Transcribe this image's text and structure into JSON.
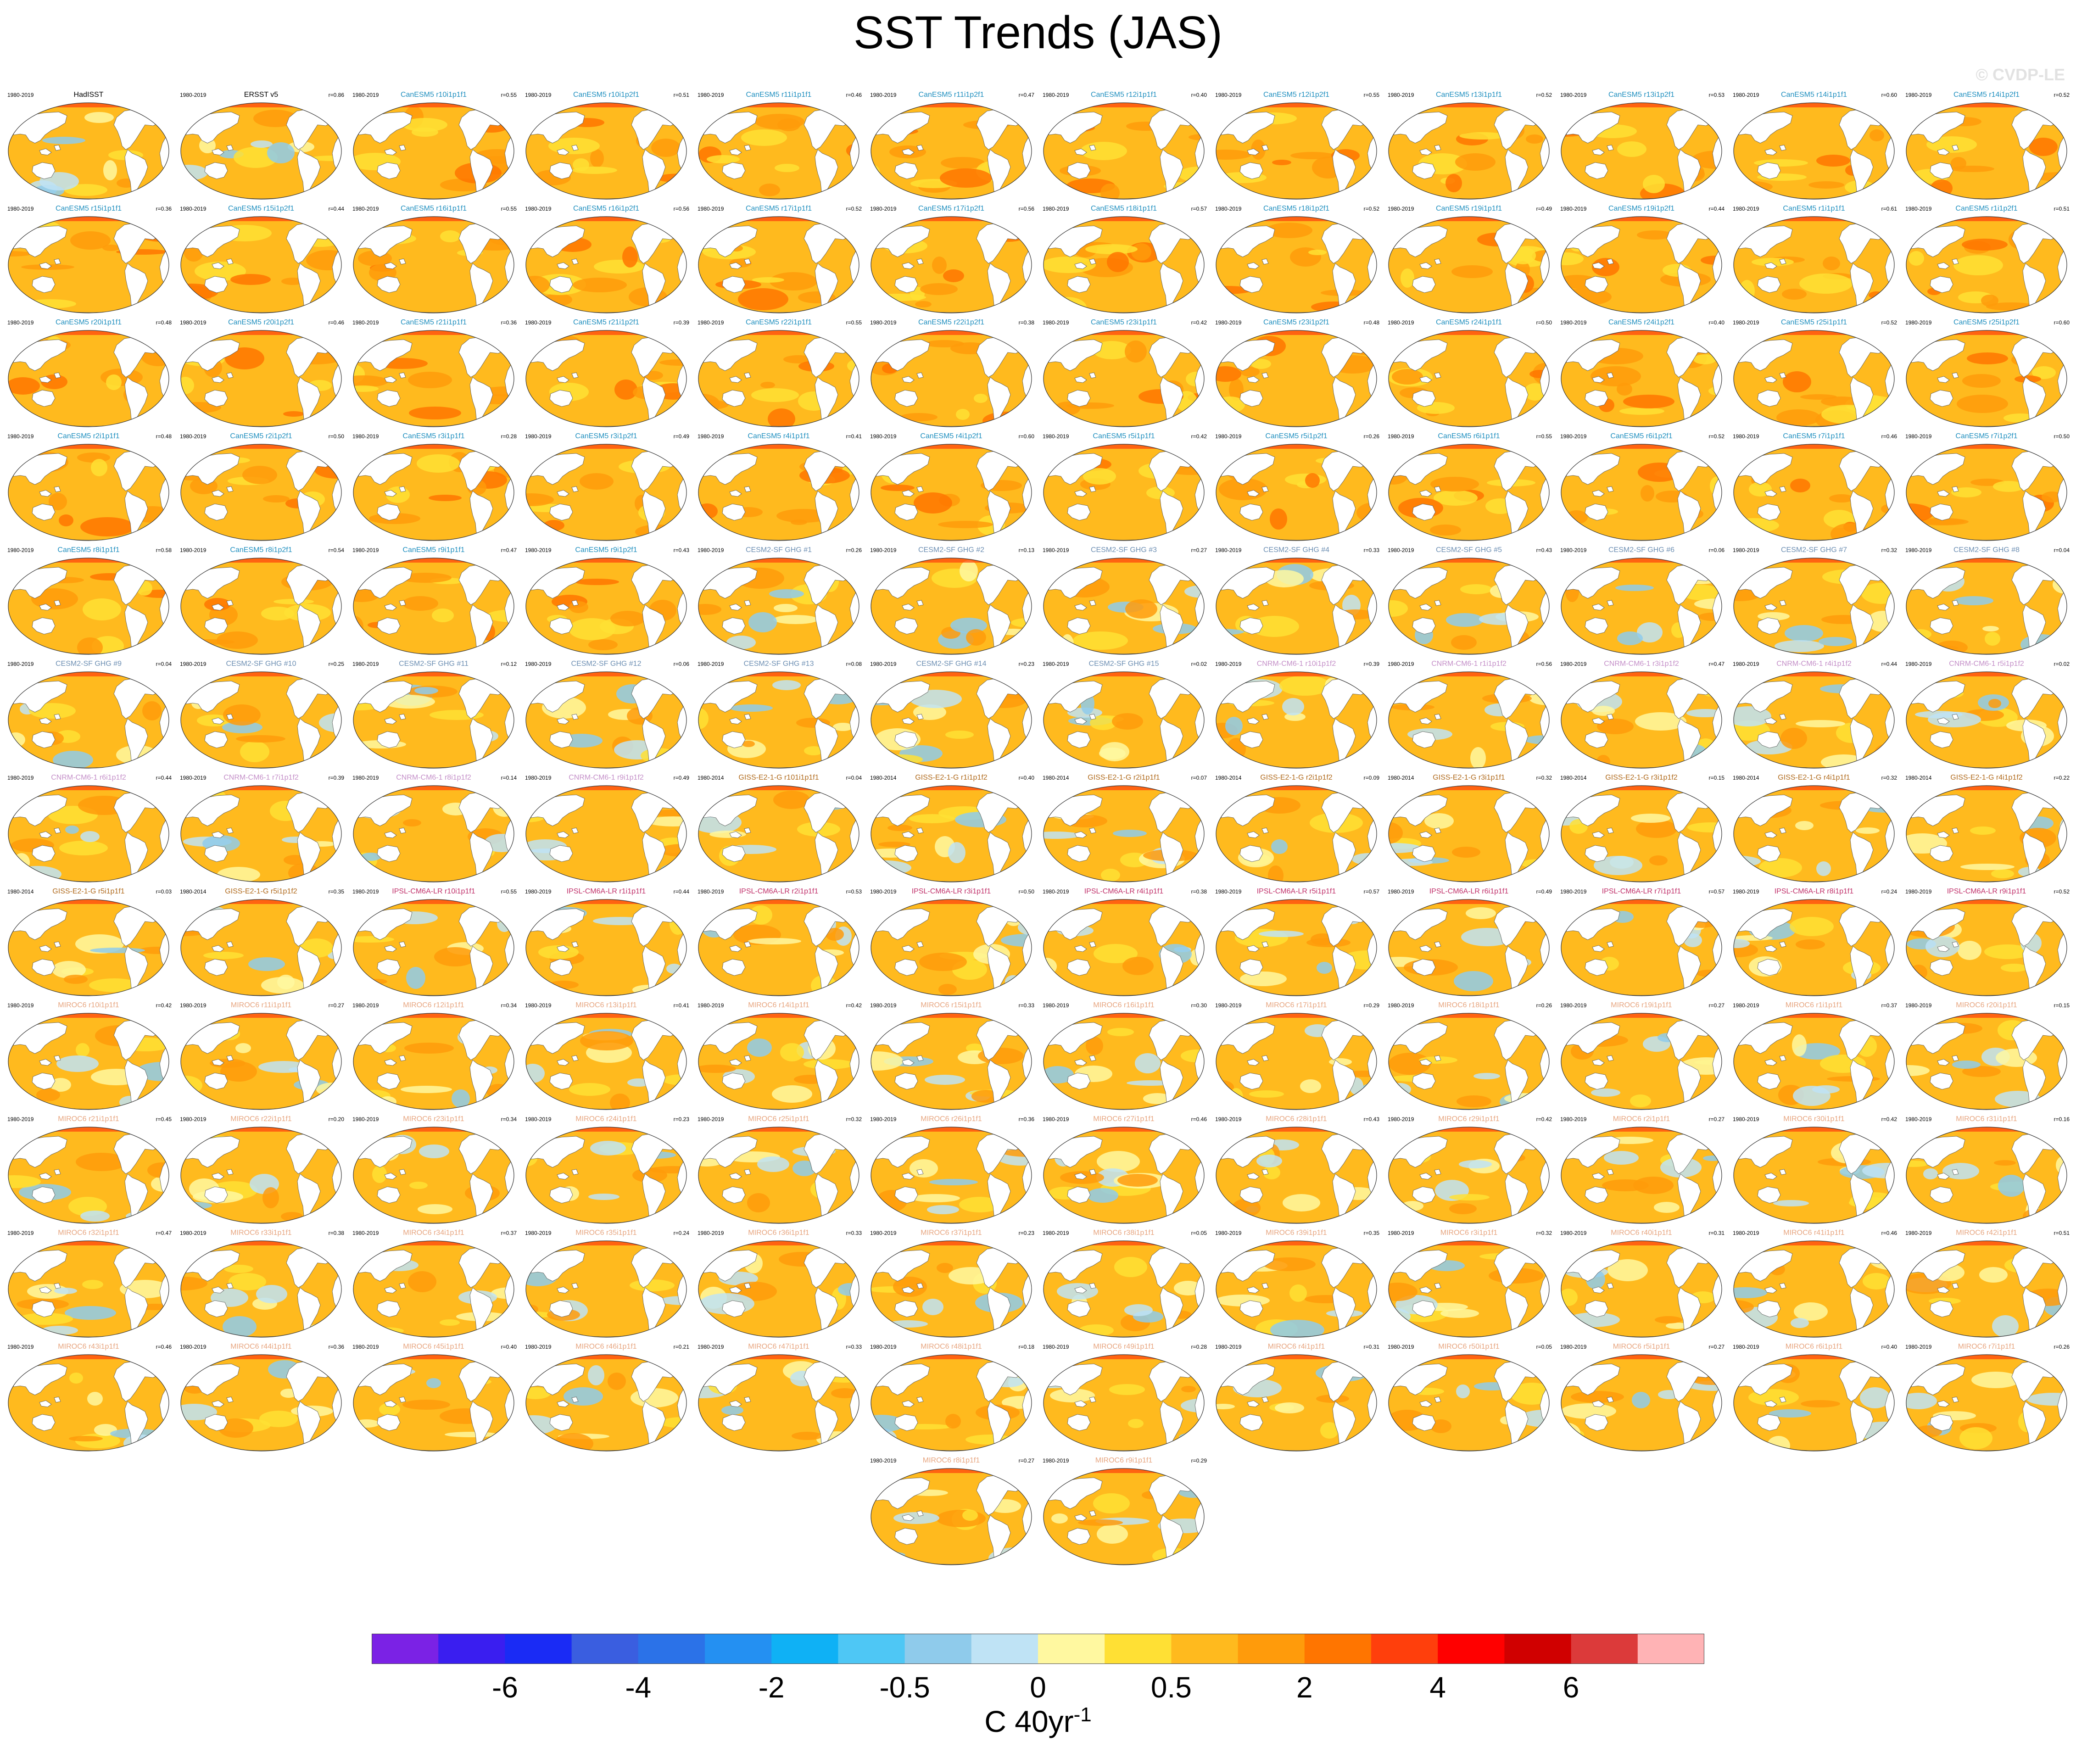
{
  "title": "SST Trends (JAS)",
  "watermark": "© CVDP-LE",
  "panels": [
    {
      "label": "HadISST",
      "period": "1980-2019",
      "r": "",
      "group": "obs"
    },
    {
      "label": "ERSST v5",
      "period": "1980-2019",
      "r": "r=0.86",
      "group": "obs"
    },
    {
      "label": "CanESM5 r10i1p1f1",
      "period": "1980-2019",
      "r": "r=0.55",
      "group": "canesm"
    },
    {
      "label": "CanESM5 r10i1p2f1",
      "period": "1980-2019",
      "r": "r=0.51",
      "group": "canesm"
    },
    {
      "label": "CanESM5 r11i1p1f1",
      "period": "1980-2019",
      "r": "r=0.46",
      "group": "canesm"
    },
    {
      "label": "CanESM5 r11i1p2f1",
      "period": "1980-2019",
      "r": "r=0.47",
      "group": "canesm"
    },
    {
      "label": "CanESM5 r12i1p1f1",
      "period": "1980-2019",
      "r": "r=0.40",
      "group": "canesm"
    },
    {
      "label": "CanESM5 r12i1p2f1",
      "period": "1980-2019",
      "r": "r=0.55",
      "group": "canesm"
    },
    {
      "label": "CanESM5 r13i1p1f1",
      "period": "1980-2019",
      "r": "r=0.52",
      "group": "canesm"
    },
    {
      "label": "CanESM5 r13i1p2f1",
      "period": "1980-2019",
      "r": "r=0.53",
      "group": "canesm"
    },
    {
      "label": "CanESM5 r14i1p1f1",
      "period": "1980-2019",
      "r": "r=0.60",
      "group": "canesm"
    },
    {
      "label": "CanESM5 r14i1p2f1",
      "period": "1980-2019",
      "r": "r=0.52",
      "group": "canesm"
    },
    {
      "label": "CanESM5 r15i1p1f1",
      "period": "1980-2019",
      "r": "r=0.36",
      "group": "canesm"
    },
    {
      "label": "CanESM5 r15i1p2f1",
      "period": "1980-2019",
      "r": "r=0.44",
      "group": "canesm"
    },
    {
      "label": "CanESM5 r16i1p1f1",
      "period": "1980-2019",
      "r": "r=0.55",
      "group": "canesm"
    },
    {
      "label": "CanESM5 r16i1p2f1",
      "period": "1980-2019",
      "r": "r=0.56",
      "group": "canesm"
    },
    {
      "label": "CanESM5 r17i1p1f1",
      "period": "1980-2019",
      "r": "r=0.52",
      "group": "canesm"
    },
    {
      "label": "CanESM5 r17i1p2f1",
      "period": "1980-2019",
      "r": "r=0.56",
      "group": "canesm"
    },
    {
      "label": "CanESM5 r18i1p1f1",
      "period": "1980-2019",
      "r": "r=0.57",
      "group": "canesm"
    },
    {
      "label": "CanESM5 r18i1p2f1",
      "period": "1980-2019",
      "r": "r=0.52",
      "group": "canesm"
    },
    {
      "label": "CanESM5 r19i1p1f1",
      "period": "1980-2019",
      "r": "r=0.49",
      "group": "canesm"
    },
    {
      "label": "CanESM5 r19i1p2f1",
      "period": "1980-2019",
      "r": "r=0.44",
      "group": "canesm"
    },
    {
      "label": "CanESM5 r1i1p1f1",
      "period": "1980-2019",
      "r": "r=0.61",
      "group": "canesm"
    },
    {
      "label": "CanESM5 r1i1p2f1",
      "period": "1980-2019",
      "r": "r=0.51",
      "group": "canesm"
    },
    {
      "label": "CanESM5 r20i1p1f1",
      "period": "1980-2019",
      "r": "r=0.48",
      "group": "canesm"
    },
    {
      "label": "CanESM5 r20i1p2f1",
      "period": "1980-2019",
      "r": "r=0.46",
      "group": "canesm"
    },
    {
      "label": "CanESM5 r21i1p1f1",
      "period": "1980-2019",
      "r": "r=0.36",
      "group": "canesm"
    },
    {
      "label": "CanESM5 r21i1p2f1",
      "period": "1980-2019",
      "r": "r=0.39",
      "group": "canesm"
    },
    {
      "label": "CanESM5 r22i1p1f1",
      "period": "1980-2019",
      "r": "r=0.55",
      "group": "canesm"
    },
    {
      "label": "CanESM5 r22i1p2f1",
      "period": "1980-2019",
      "r": "r=0.38",
      "group": "canesm"
    },
    {
      "label": "CanESM5 r23i1p1f1",
      "period": "1980-2019",
      "r": "r=0.42",
      "group": "canesm"
    },
    {
      "label": "CanESM5 r23i1p2f1",
      "period": "1980-2019",
      "r": "r=0.48",
      "group": "canesm"
    },
    {
      "label": "CanESM5 r24i1p1f1",
      "period": "1980-2019",
      "r": "r=0.50",
      "group": "canesm"
    },
    {
      "label": "CanESM5 r24i1p2f1",
      "period": "1980-2019",
      "r": "r=0.40",
      "group": "canesm"
    },
    {
      "label": "CanESM5 r25i1p1f1",
      "period": "1980-2019",
      "r": "r=0.52",
      "group": "canesm"
    },
    {
      "label": "CanESM5 r25i1p2f1",
      "period": "1980-2019",
      "r": "r=0.60",
      "group": "canesm"
    },
    {
      "label": "CanESM5 r2i1p1f1",
      "period": "1980-2019",
      "r": "r=0.48",
      "group": "canesm"
    },
    {
      "label": "CanESM5 r2i1p2f1",
      "period": "1980-2019",
      "r": "r=0.50",
      "group": "canesm"
    },
    {
      "label": "CanESM5 r3i1p1f1",
      "period": "1980-2019",
      "r": "r=0.28",
      "group": "canesm"
    },
    {
      "label": "CanESM5 r3i1p2f1",
      "period": "1980-2019",
      "r": "r=0.49",
      "group": "canesm"
    },
    {
      "label": "CanESM5 r4i1p1f1",
      "period": "1980-2019",
      "r": "r=0.41",
      "group": "canesm"
    },
    {
      "label": "CanESM5 r4i1p2f1",
      "period": "1980-2019",
      "r": "r=0.60",
      "group": "canesm"
    },
    {
      "label": "CanESM5 r5i1p1f1",
      "period": "1980-2019",
      "r": "r=0.42",
      "group": "canesm"
    },
    {
      "label": "CanESM5 r5i1p2f1",
      "period": "1980-2019",
      "r": "r=0.26",
      "group": "canesm"
    },
    {
      "label": "CanESM5 r6i1p1f1",
      "period": "1980-2019",
      "r": "r=0.55",
      "group": "canesm"
    },
    {
      "label": "CanESM5 r6i1p2f1",
      "period": "1980-2019",
      "r": "r=0.52",
      "group": "canesm"
    },
    {
      "label": "CanESM5 r7i1p1f1",
      "period": "1980-2019",
      "r": "r=0.46",
      "group": "canesm"
    },
    {
      "label": "CanESM5 r7i1p2f1",
      "period": "1980-2019",
      "r": "r=0.50",
      "group": "canesm"
    },
    {
      "label": "CanESM5 r8i1p1f1",
      "period": "1980-2019",
      "r": "r=0.58",
      "group": "canesm"
    },
    {
      "label": "CanESM5 r8i1p2f1",
      "period": "1980-2019",
      "r": "r=0.54",
      "group": "canesm"
    },
    {
      "label": "CanESM5 r9i1p1f1",
      "period": "1980-2019",
      "r": "r=0.47",
      "group": "canesm"
    },
    {
      "label": "CanESM5 r9i1p2f1",
      "period": "1980-2019",
      "r": "r=0.43",
      "group": "canesm"
    },
    {
      "label": "CESM2-SF GHG #1",
      "period": "1980-2019",
      "r": "r=0.26",
      "group": "cesm"
    },
    {
      "label": "CESM2-SF GHG #2",
      "period": "1980-2019",
      "r": "r=0.13",
      "group": "cesm"
    },
    {
      "label": "CESM2-SF GHG #3",
      "period": "1980-2019",
      "r": "r=0.27",
      "group": "cesm"
    },
    {
      "label": "CESM2-SF GHG #4",
      "period": "1980-2019",
      "r": "r=0.33",
      "group": "cesm"
    },
    {
      "label": "CESM2-SF GHG #5",
      "period": "1980-2019",
      "r": "r=0.43",
      "group": "cesm"
    },
    {
      "label": "CESM2-SF GHG #6",
      "period": "1980-2019",
      "r": "r=0.06",
      "group": "cesm"
    },
    {
      "label": "CESM2-SF GHG #7",
      "period": "1980-2019",
      "r": "r=0.32",
      "group": "cesm"
    },
    {
      "label": "CESM2-SF GHG #8",
      "period": "1980-2019",
      "r": "r=0.04",
      "group": "cesm"
    },
    {
      "label": "CESM2-SF GHG #9",
      "period": "1980-2019",
      "r": "r=0.04",
      "group": "cesm"
    },
    {
      "label": "CESM2-SF GHG #10",
      "period": "1980-2019",
      "r": "r=0.25",
      "group": "cesm"
    },
    {
      "label": "CESM2-SF GHG #11",
      "period": "1980-2019",
      "r": "r=0.12",
      "group": "cesm"
    },
    {
      "label": "CESM2-SF GHG #12",
      "period": "1980-2019",
      "r": "r=0.06",
      "group": "cesm"
    },
    {
      "label": "CESM2-SF GHG #13",
      "period": "1980-2019",
      "r": "r=0.08",
      "group": "cesm"
    },
    {
      "label": "CESM2-SF GHG #14",
      "period": "1980-2019",
      "r": "r=0.23",
      "group": "cesm"
    },
    {
      "label": "CESM2-SF GHG #15",
      "period": "1980-2019",
      "r": "r=0.02",
      "group": "cesm"
    },
    {
      "label": "CNRM-CM6-1 r10i1p1f2",
      "period": "1980-2019",
      "r": "r=0.39",
      "group": "cnrm"
    },
    {
      "label": "CNRM-CM6-1 r1i1p1f2",
      "period": "1980-2019",
      "r": "r=0.56",
      "group": "cnrm"
    },
    {
      "label": "CNRM-CM6-1 r3i1p1f2",
      "period": "1980-2019",
      "r": "r=0.47",
      "group": "cnrm"
    },
    {
      "label": "CNRM-CM6-1 r4i1p1f2",
      "period": "1980-2019",
      "r": "r=0.44",
      "group": "cnrm"
    },
    {
      "label": "CNRM-CM6-1 r5i1p1f2",
      "period": "1980-2019",
      "r": "r=0.02",
      "group": "cnrm"
    },
    {
      "label": "CNRM-CM6-1 r6i1p1f2",
      "period": "1980-2019",
      "r": "r=0.44",
      "group": "cnrm"
    },
    {
      "label": "CNRM-CM6-1 r7i1p1f2",
      "period": "1980-2019",
      "r": "r=0.39",
      "group": "cnrm"
    },
    {
      "label": "CNRM-CM6-1 r8i1p1f2",
      "period": "1980-2019",
      "r": "r=0.14",
      "group": "cnrm"
    },
    {
      "label": "CNRM-CM6-1 r9i1p1f2",
      "period": "1980-2019",
      "r": "r=0.49",
      "group": "cnrm"
    },
    {
      "label": "GISS-E2-1-G r101i1p1f1",
      "period": "1980-2014",
      "r": "r=0.04",
      "group": "giss"
    },
    {
      "label": "GISS-E2-1-G r1i1p1f2",
      "period": "1980-2014",
      "r": "r=0.40",
      "group": "giss"
    },
    {
      "label": "GISS-E2-1-G r2i1p1f1",
      "period": "1980-2014",
      "r": "r=0.07",
      "group": "giss"
    },
    {
      "label": "GISS-E2-1-G r2i1p1f2",
      "period": "1980-2014",
      "r": "r=0.09",
      "group": "giss"
    },
    {
      "label": "GISS-E2-1-G r3i1p1f1",
      "period": "1980-2014",
      "r": "r=0.32",
      "group": "giss"
    },
    {
      "label": "GISS-E2-1-G r3i1p1f2",
      "period": "1980-2014",
      "r": "r=0.15",
      "group": "giss"
    },
    {
      "label": "GISS-E2-1-G r4i1p1f1",
      "period": "1980-2014",
      "r": "r=0.32",
      "group": "giss"
    },
    {
      "label": "GISS-E2-1-G r4i1p1f2",
      "period": "1980-2014",
      "r": "r=0.22",
      "group": "giss"
    },
    {
      "label": "GISS-E2-1-G r5i1p1f1",
      "period": "1980-2014",
      "r": "r=0.03",
      "group": "giss"
    },
    {
      "label": "GISS-E2-1-G r5i1p1f2",
      "period": "1980-2014",
      "r": "r=0.35",
      "group": "giss"
    },
    {
      "label": "IPSL-CM6A-LR r10i1p1f1",
      "period": "1980-2019",
      "r": "r=0.55",
      "group": "ipsl"
    },
    {
      "label": "IPSL-CM6A-LR r1i1p1f1",
      "period": "1980-2019",
      "r": "r=0.44",
      "group": "ipsl"
    },
    {
      "label": "IPSL-CM6A-LR r2i1p1f1",
      "period": "1980-2019",
      "r": "r=0.53",
      "group": "ipsl"
    },
    {
      "label": "IPSL-CM6A-LR r3i1p1f1",
      "period": "1980-2019",
      "r": "r=0.50",
      "group": "ipsl"
    },
    {
      "label": "IPSL-CM6A-LR r4i1p1f1",
      "period": "1980-2019",
      "r": "r=0.38",
      "group": "ipsl"
    },
    {
      "label": "IPSL-CM6A-LR r5i1p1f1",
      "period": "1980-2019",
      "r": "r=0.57",
      "group": "ipsl"
    },
    {
      "label": "IPSL-CM6A-LR r6i1p1f1",
      "period": "1980-2019",
      "r": "r=0.49",
      "group": "ipsl"
    },
    {
      "label": "IPSL-CM6A-LR r7i1p1f1",
      "period": "1980-2019",
      "r": "r=0.57",
      "group": "ipsl"
    },
    {
      "label": "IPSL-CM6A-LR r8i1p1f1",
      "period": "1980-2019",
      "r": "r=0.24",
      "group": "ipsl"
    },
    {
      "label": "IPSL-CM6A-LR r9i1p1f1",
      "period": "1980-2019",
      "r": "r=0.52",
      "group": "ipsl"
    },
    {
      "label": "MIROC6 r10i1p1f1",
      "period": "1980-2019",
      "r": "r=0.42",
      "group": "miroc"
    },
    {
      "label": "MIROC6 r11i1p1f1",
      "period": "1980-2019",
      "r": "r=0.27",
      "group": "miroc"
    },
    {
      "label": "MIROC6 r12i1p1f1",
      "period": "1980-2019",
      "r": "r=0.34",
      "group": "miroc"
    },
    {
      "label": "MIROC6 r13i1p1f1",
      "period": "1980-2019",
      "r": "r=0.41",
      "group": "miroc"
    },
    {
      "label": "MIROC6 r14i1p1f1",
      "period": "1980-2019",
      "r": "r=0.42",
      "group": "miroc"
    },
    {
      "label": "MIROC6 r15i1p1f1",
      "period": "1980-2019",
      "r": "r=0.33",
      "group": "miroc"
    },
    {
      "label": "MIROC6 r16i1p1f1",
      "period": "1980-2019",
      "r": "r=0.30",
      "group": "miroc"
    },
    {
      "label": "MIROC6 r17i1p1f1",
      "period": "1980-2019",
      "r": "r=0.29",
      "group": "miroc"
    },
    {
      "label": "MIROC6 r18i1p1f1",
      "period": "1980-2019",
      "r": "r=0.26",
      "group": "miroc"
    },
    {
      "label": "MIROC6 r19i1p1f1",
      "period": "1980-2019",
      "r": "r=0.27",
      "group": "miroc"
    },
    {
      "label": "MIROC6 r1i1p1f1",
      "period": "1980-2019",
      "r": "r=0.37",
      "group": "miroc"
    },
    {
      "label": "MIROC6 r20i1p1f1",
      "period": "1980-2019",
      "r": "r=0.15",
      "group": "miroc"
    },
    {
      "label": "MIROC6 r21i1p1f1",
      "period": "1980-2019",
      "r": "r=0.45",
      "group": "miroc"
    },
    {
      "label": "MIROC6 r22i1p1f1",
      "period": "1980-2019",
      "r": "r=0.20",
      "group": "miroc"
    },
    {
      "label": "MIROC6 r23i1p1f1",
      "period": "1980-2019",
      "r": "r=0.34",
      "group": "miroc"
    },
    {
      "label": "MIROC6 r24i1p1f1",
      "period": "1980-2019",
      "r": "r=0.23",
      "group": "miroc"
    },
    {
      "label": "MIROC6 r25i1p1f1",
      "period": "1980-2019",
      "r": "r=0.32",
      "group": "miroc"
    },
    {
      "label": "MIROC6 r26i1p1f1",
      "period": "1980-2019",
      "r": "r=0.36",
      "group": "miroc"
    },
    {
      "label": "MIROC6 r27i1p1f1",
      "period": "1980-2019",
      "r": "r=0.46",
      "group": "miroc"
    },
    {
      "label": "MIROC6 r28i1p1f1",
      "period": "1980-2019",
      "r": "r=0.43",
      "group": "miroc"
    },
    {
      "label": "MIROC6 r29i1p1f1",
      "period": "1980-2019",
      "r": "r=0.42",
      "group": "miroc"
    },
    {
      "label": "MIROC6 r2i1p1f1",
      "period": "1980-2019",
      "r": "r=0.27",
      "group": "miroc"
    },
    {
      "label": "MIROC6 r30i1p1f1",
      "period": "1980-2019",
      "r": "r=0.42",
      "group": "miroc"
    },
    {
      "label": "MIROC6 r31i1p1f1",
      "period": "1980-2019",
      "r": "r=0.16",
      "group": "miroc"
    },
    {
      "label": "MIROC6 r32i1p1f1",
      "period": "1980-2019",
      "r": "r=0.47",
      "group": "miroc"
    },
    {
      "label": "MIROC6 r33i1p1f1",
      "period": "1980-2019",
      "r": "r=0.38",
      "group": "miroc"
    },
    {
      "label": "MIROC6 r34i1p1f1",
      "period": "1980-2019",
      "r": "r=0.37",
      "group": "miroc"
    },
    {
      "label": "MIROC6 r35i1p1f1",
      "period": "1980-2019",
      "r": "r=0.24",
      "group": "miroc"
    },
    {
      "label": "MIROC6 r36i1p1f1",
      "period": "1980-2019",
      "r": "r=0.33",
      "group": "miroc"
    },
    {
      "label": "MIROC6 r37i1p1f1",
      "period": "1980-2019",
      "r": "r=0.23",
      "group": "miroc"
    },
    {
      "label": "MIROC6 r38i1p1f1",
      "period": "1980-2019",
      "r": "r=0.05",
      "group": "miroc"
    },
    {
      "label": "MIROC6 r39i1p1f1",
      "period": "1980-2019",
      "r": "r=0.35",
      "group": "miroc"
    },
    {
      "label": "MIROC6 r3i1p1f1",
      "period": "1980-2019",
      "r": "r=0.32",
      "group": "miroc"
    },
    {
      "label": "MIROC6 r40i1p1f1",
      "period": "1980-2019",
      "r": "r=0.31",
      "group": "miroc"
    },
    {
      "label": "MIROC6 r41i1p1f1",
      "period": "1980-2019",
      "r": "r=0.46",
      "group": "miroc"
    },
    {
      "label": "MIROC6 r42i1p1f1",
      "period": "1980-2019",
      "r": "r=0.51",
      "group": "miroc"
    },
    {
      "label": "MIROC6 r43i1p1f1",
      "period": "1980-2019",
      "r": "r=0.46",
      "group": "miroc"
    },
    {
      "label": "MIROC6 r44i1p1f1",
      "period": "1980-2019",
      "r": "r=0.36",
      "group": "miroc"
    },
    {
      "label": "MIROC6 r45i1p1f1",
      "period": "1980-2019",
      "r": "r=0.40",
      "group": "miroc"
    },
    {
      "label": "MIROC6 r46i1p1f1",
      "period": "1980-2019",
      "r": "r=0.21",
      "group": "miroc"
    },
    {
      "label": "MIROC6 r47i1p1f1",
      "period": "1980-2019",
      "r": "r=0.33",
      "group": "miroc"
    },
    {
      "label": "MIROC6 r48i1p1f1",
      "period": "1980-2019",
      "r": "r=0.18",
      "group": "miroc"
    },
    {
      "label": "MIROC6 r49i1p1f1",
      "period": "1980-2019",
      "r": "r=0.28",
      "group": "miroc"
    },
    {
      "label": "MIROC6 r4i1p1f1",
      "period": "1980-2019",
      "r": "r=0.31",
      "group": "miroc"
    },
    {
      "label": "MIROC6 r50i1p1f1",
      "period": "1980-2019",
      "r": "r=0.05",
      "group": "miroc"
    },
    {
      "label": "MIROC6 r5i1p1f1",
      "period": "1980-2019",
      "r": "r=0.27",
      "group": "miroc"
    },
    {
      "label": "MIROC6 r6i1p1f1",
      "period": "1980-2019",
      "r": "r=0.40",
      "group": "miroc"
    },
    {
      "label": "MIROC6 r7i1p1f1",
      "period": "1980-2019",
      "r": "r=0.26",
      "group": "miroc"
    },
    {
      "label": "MIROC6 r8i1p1f1",
      "period": "1980-2019",
      "r": "r=0.27",
      "group": "miroc"
    },
    {
      "label": "MIROC6 r9i1p1f1",
      "period": "1980-2019",
      "r": "r=0.29",
      "group": "miroc"
    }
  ],
  "group_colors": {
    "obs": "#000000",
    "canesm": "#1f8fbf",
    "cesm": "#6d8fb3",
    "cnrm": "#c48fc8",
    "giss": "#b06a1c",
    "ipsl": "#c0306a",
    "miroc": "#e7a57f"
  },
  "colorbar": {
    "colors": [
      "#7b22e5",
      "#3a1ef0",
      "#1a2bf5",
      "#3a5ee0",
      "#2b72e8",
      "#2490f2",
      "#0fb1f5",
      "#4ec7f5",
      "#8fcbeb",
      "#bfe3f5",
      "#fff8a0",
      "#ffe034",
      "#ffba1e",
      "#ff9b0b",
      "#ff7500",
      "#ff3f0c",
      "#ff0000",
      "#d00000",
      "#dc3a3a",
      "#ffb3b5"
    ],
    "tick_labels": [
      "-6",
      "-4",
      "-2",
      "-0.5",
      "0",
      "0.5",
      "2",
      "4",
      "6"
    ],
    "units_base": "C 40yr",
    "units_sup": "-1"
  }
}
